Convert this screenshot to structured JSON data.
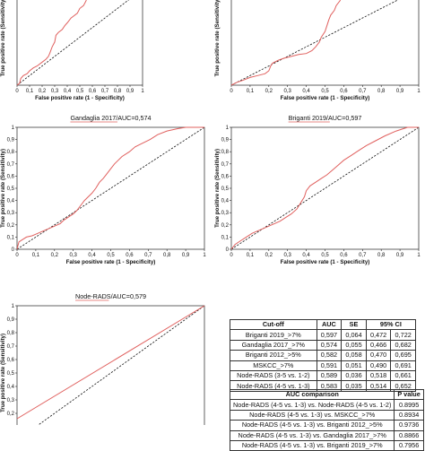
{
  "chart_data": [
    {
      "type": "line",
      "title": "",
      "xlabel": "False positive rate (1 - Specificity)",
      "ylabel": "True positive rate (Sensitivity)",
      "xlim": [
        0,
        1
      ],
      "ylim": [
        0,
        1
      ],
      "xticks": [
        "0",
        "0,1",
        "0,2",
        "0,3",
        "0,4",
        "0,5",
        "0,6",
        "0,7",
        "0,8",
        "0,9",
        "1"
      ],
      "yticks": [],
      "reference_line": true,
      "roc": [
        [
          0,
          0
        ],
        [
          0.02,
          0.02
        ],
        [
          0.03,
          0.07
        ],
        [
          0.05,
          0.1
        ],
        [
          0.08,
          0.12
        ],
        [
          0.1,
          0.15
        ],
        [
          0.13,
          0.18
        ],
        [
          0.16,
          0.2
        ],
        [
          0.2,
          0.24
        ],
        [
          0.23,
          0.27
        ],
        [
          0.25,
          0.3
        ],
        [
          0.26,
          0.33
        ],
        [
          0.28,
          0.4
        ],
        [
          0.3,
          0.45
        ],
        [
          0.31,
          0.52
        ],
        [
          0.33,
          0.55
        ],
        [
          0.36,
          0.58
        ],
        [
          0.38,
          0.62
        ],
        [
          0.4,
          0.65
        ],
        [
          0.43,
          0.7
        ],
        [
          0.45,
          0.72
        ],
        [
          0.48,
          0.75
        ],
        [
          0.5,
          0.8
        ],
        [
          0.53,
          0.83
        ],
        [
          0.55,
          0.88
        ],
        [
          0.56,
          0.93
        ],
        [
          0.58,
          0.95
        ],
        [
          0.62,
          0.97
        ],
        [
          0.65,
          1
        ],
        [
          0.7,
          1
        ]
      ]
    },
    {
      "type": "line",
      "title": "",
      "xlabel": "False positive rate (1 - Specificity)",
      "ylabel": "True positive rate (Sensitivity)",
      "xlim": [
        0,
        1
      ],
      "ylim": [
        0,
        1
      ],
      "xticks": [
        "0",
        "0,1",
        "0,2",
        "0,3",
        "0,4",
        "0,5",
        "0,6",
        "0,7",
        "0,8",
        "0,9",
        "1"
      ],
      "yticks": [],
      "reference_line": true,
      "roc": [
        [
          0,
          0
        ],
        [
          0.03,
          0.03
        ],
        [
          0.06,
          0.05
        ],
        [
          0.1,
          0.08
        ],
        [
          0.14,
          0.1
        ],
        [
          0.18,
          0.12
        ],
        [
          0.2,
          0.15
        ],
        [
          0.21,
          0.2
        ],
        [
          0.22,
          0.23
        ],
        [
          0.25,
          0.26
        ],
        [
          0.28,
          0.28
        ],
        [
          0.32,
          0.3
        ],
        [
          0.36,
          0.32
        ],
        [
          0.4,
          0.33
        ],
        [
          0.43,
          0.36
        ],
        [
          0.45,
          0.4
        ],
        [
          0.47,
          0.45
        ],
        [
          0.48,
          0.5
        ],
        [
          0.5,
          0.56
        ],
        [
          0.51,
          0.62
        ],
        [
          0.52,
          0.68
        ],
        [
          0.53,
          0.73
        ],
        [
          0.55,
          0.78
        ],
        [
          0.56,
          0.83
        ],
        [
          0.58,
          0.88
        ],
        [
          0.59,
          0.93
        ],
        [
          0.6,
          0.96
        ],
        [
          0.62,
          0.98
        ],
        [
          0.65,
          1
        ]
      ]
    },
    {
      "type": "line",
      "title": "Gandaglia 2017/AUC=0,574",
      "xlabel": "False positive rate (1 - Specificity)",
      "ylabel": "True positive rate (Sensitivity)",
      "xlim": [
        0,
        1
      ],
      "ylim": [
        0,
        1
      ],
      "xticks": [
        "0",
        "0,1",
        "0,2",
        "0,3",
        "0,4",
        "0,5",
        "0,6",
        "0,7",
        "0,8",
        "0,9",
        "1"
      ],
      "yticks": [
        "0",
        "0,1",
        "0,2",
        "0,3",
        "0,4",
        "0,5",
        "0,6",
        "0,7",
        "0,8",
        "0,9",
        "1"
      ],
      "reference_line": true,
      "roc": [
        [
          0,
          0
        ],
        [
          0.01,
          0.06
        ],
        [
          0.03,
          0.08
        ],
        [
          0.05,
          0.1
        ],
        [
          0.08,
          0.11
        ],
        [
          0.11,
          0.13
        ],
        [
          0.14,
          0.15
        ],
        [
          0.17,
          0.17
        ],
        [
          0.2,
          0.19
        ],
        [
          0.23,
          0.21
        ],
        [
          0.25,
          0.24
        ],
        [
          0.28,
          0.27
        ],
        [
          0.3,
          0.29
        ],
        [
          0.32,
          0.32
        ],
        [
          0.34,
          0.36
        ],
        [
          0.36,
          0.4
        ],
        [
          0.38,
          0.43
        ],
        [
          0.4,
          0.46
        ],
        [
          0.42,
          0.5
        ],
        [
          0.44,
          0.55
        ],
        [
          0.46,
          0.58
        ],
        [
          0.48,
          0.62
        ],
        [
          0.5,
          0.66
        ],
        [
          0.52,
          0.7
        ],
        [
          0.54,
          0.73
        ],
        [
          0.56,
          0.76
        ],
        [
          0.6,
          0.8
        ],
        [
          0.63,
          0.84
        ],
        [
          0.67,
          0.87
        ],
        [
          0.71,
          0.9
        ],
        [
          0.75,
          0.94
        ],
        [
          0.8,
          0.97
        ],
        [
          0.86,
          0.99
        ],
        [
          0.9,
          1
        ],
        [
          1,
          1
        ]
      ]
    },
    {
      "type": "line",
      "title": "Briganti 2019/AUC=0,597",
      "xlabel": "False positive rate (1 - Specificity)",
      "ylabel": "True positive rate (Sensitivity)",
      "xlim": [
        0,
        1
      ],
      "ylim": [
        0,
        1
      ],
      "xticks": [
        "0",
        "0,1",
        "0,2",
        "0,3",
        "0,4",
        "0,5",
        "0,6",
        "0,7",
        "0,8",
        "0,9",
        "1"
      ],
      "yticks": [
        "0",
        "0,1",
        "0,2",
        "0,3",
        "0,4",
        "0,5",
        "0,6",
        "0,7",
        "0,8",
        "0,9",
        "1"
      ],
      "reference_line": true,
      "roc": [
        [
          0,
          0
        ],
        [
          0.02,
          0.04
        ],
        [
          0.05,
          0.07
        ],
        [
          0.08,
          0.1
        ],
        [
          0.11,
          0.13
        ],
        [
          0.14,
          0.15
        ],
        [
          0.17,
          0.17
        ],
        [
          0.2,
          0.19
        ],
        [
          0.23,
          0.21
        ],
        [
          0.26,
          0.23
        ],
        [
          0.29,
          0.26
        ],
        [
          0.32,
          0.29
        ],
        [
          0.35,
          0.33
        ],
        [
          0.37,
          0.38
        ],
        [
          0.39,
          0.43
        ],
        [
          0.4,
          0.48
        ],
        [
          0.42,
          0.52
        ],
        [
          0.45,
          0.55
        ],
        [
          0.48,
          0.58
        ],
        [
          0.51,
          0.61
        ],
        [
          0.54,
          0.65
        ],
        [
          0.57,
          0.69
        ],
        [
          0.6,
          0.73
        ],
        [
          0.64,
          0.77
        ],
        [
          0.68,
          0.81
        ],
        [
          0.72,
          0.85
        ],
        [
          0.77,
          0.89
        ],
        [
          0.82,
          0.93
        ],
        [
          0.88,
          0.97
        ],
        [
          0.94,
          1
        ],
        [
          1,
          1
        ]
      ]
    },
    {
      "type": "line",
      "title": "Node-RADS/AUC=0,579",
      "xlabel": "",
      "ylabel": "True positive rate (Sensitivity)",
      "xlim": [
        0,
        1
      ],
      "ylim": [
        0,
        1
      ],
      "xticks": [],
      "yticks": [
        "0",
        "0,1",
        "0,2",
        "0,3",
        "0,4",
        "0,5",
        "0,6",
        "0,7",
        "0,8",
        "0,9",
        "1"
      ],
      "reference_line": true,
      "roc": [
        [
          0,
          0.16
        ],
        [
          1,
          1
        ]
      ]
    }
  ],
  "table1": {
    "headers": [
      "Cut-off",
      "AUC",
      "SE",
      "95% CI",
      ""
    ],
    "rows": [
      [
        "Briganti 2019_>7%",
        "0,597",
        "0,064",
        "0,472",
        "0,722"
      ],
      [
        "Gandaglia 2017_>7%",
        "0,574",
        "0,055",
        "0,466",
        "0,682"
      ],
      [
        "Briganti 2012_>5%",
        "0,582",
        "0,058",
        "0,470",
        "0,695"
      ],
      [
        "MSKCC_>7%",
        "0,591",
        "0,051",
        "0,490",
        "0,691"
      ],
      [
        "Node-RADS (3-5 vs. 1-2)",
        "0,589",
        "0,036",
        "0,518",
        "0,661"
      ],
      [
        "Node-RADS (4-5 vs. 1-3)",
        "0,583",
        "0,035",
        "0,514",
        "0,652"
      ]
    ]
  },
  "table2": {
    "headers": [
      "AUC comparison",
      "P value"
    ],
    "rows": [
      [
        "Node-RADS (4-5 vs. 1-3) vs. Node-RADS (4-5 vs. 1-2)",
        "0.8995"
      ],
      [
        "Node-RADS (4-5 vs. 1-3) vs. MSKCC_>7%",
        "0.8934"
      ],
      [
        "Node-RADS (4-5 vs. 1-3) vs. Briganti 2012_>5%",
        "0.9736"
      ],
      [
        "Node-RADS (4-5 vs. 1-3) vs. Gandaglia 2017_>7%",
        "0.8866"
      ],
      [
        "Node-RADS (4-5 vs. 1-3) vs. Briganti 2019_>7%",
        "0.7956"
      ]
    ]
  }
}
